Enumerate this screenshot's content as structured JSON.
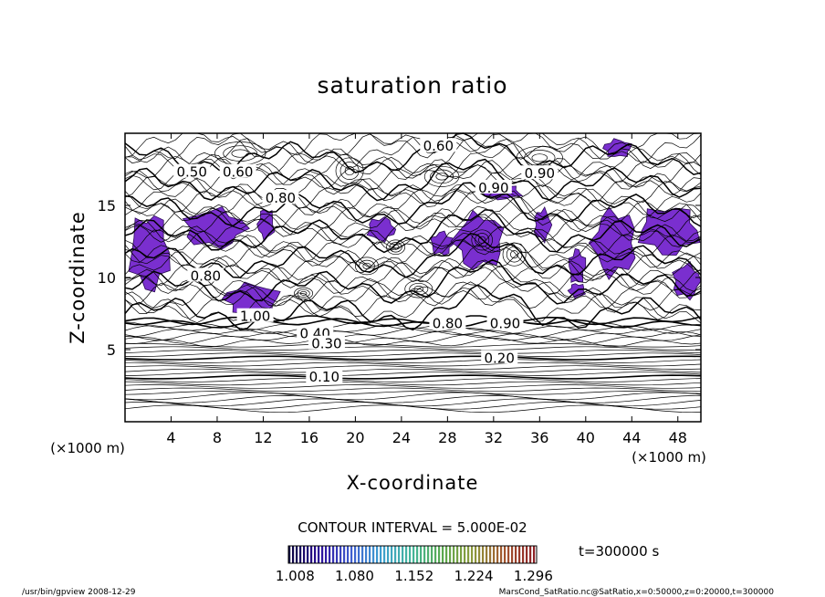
{
  "chart_data": {
    "type": "contour",
    "title": "saturation ratio",
    "xlabel": "X-coordinate",
    "ylabel": "Z-coordinate",
    "x_unit": "(×1000 m)",
    "x_unit_right": "(×1000 m)",
    "xlim": [
      0,
      50
    ],
    "ylim": [
      0,
      20
    ],
    "x_ticks": [
      4,
      8,
      12,
      16,
      20,
      24,
      28,
      32,
      36,
      40,
      44,
      48
    ],
    "y_ticks": [
      5,
      10,
      15
    ],
    "contour_interval_label": "CONTOUR INTERVAL = 5.000E-02",
    "time_label": "t=300000 s",
    "colorbar": {
      "ticks": [
        "1.008",
        "1.080",
        "1.152",
        "1.224",
        "1.296"
      ],
      "range": [
        1.0,
        1.3
      ],
      "colors": [
        "#0b0540",
        "#2c0f9a",
        "#3f5ccf",
        "#3d9fd0",
        "#44b59b",
        "#5aa94f",
        "#8c9a3c",
        "#a3572f",
        "#8e2226"
      ]
    },
    "contour_labels": [
      {
        "text": "0.50",
        "x": 5.8,
        "z": 17.3
      },
      {
        "text": "0.60",
        "x": 9.8,
        "z": 17.3
      },
      {
        "text": "0.60",
        "x": 27.2,
        "z": 19.1
      },
      {
        "text": "0.90",
        "x": 36.0,
        "z": 17.2
      },
      {
        "text": "0.90",
        "x": 32.0,
        "z": 16.2
      },
      {
        "text": "0.80",
        "x": 13.5,
        "z": 15.5
      },
      {
        "text": "0.80",
        "x": 7.0,
        "z": 10.1
      },
      {
        "text": "1.00",
        "x": 11.3,
        "z": 7.3
      },
      {
        "text": "0.80",
        "x": 28.0,
        "z": 6.8
      },
      {
        "text": "0.90",
        "x": 33.0,
        "z": 6.8
      },
      {
        "text": "0.40",
        "x": 16.5,
        "z": 6.1
      },
      {
        "text": "0.30",
        "x": 17.5,
        "z": 5.4
      },
      {
        "text": "0.20",
        "x": 32.5,
        "z": 4.4
      },
      {
        "text": "0.10",
        "x": 17.3,
        "z": 3.1
      }
    ],
    "supersaturated_regions": [
      {
        "x": [
          0.3,
          4.0
        ],
        "z": [
          9.0,
          14.5
        ]
      },
      {
        "x": [
          5.0,
          10.5
        ],
        "z": [
          12.0,
          14.8
        ]
      },
      {
        "x": [
          8.5,
          13.5
        ],
        "z": [
          7.4,
          9.6
        ]
      },
      {
        "x": [
          11.5,
          13.0
        ],
        "z": [
          12.6,
          14.8
        ]
      },
      {
        "x": [
          21.0,
          23.5
        ],
        "z": [
          12.5,
          14.2
        ]
      },
      {
        "x": [
          26.5,
          28.5
        ],
        "z": [
          11.5,
          13.2
        ]
      },
      {
        "x": [
          28.5,
          33.0
        ],
        "z": [
          10.5,
          14.5
        ]
      },
      {
        "x": [
          31.0,
          34.5
        ],
        "z": [
          15.4,
          16.4
        ]
      },
      {
        "x": [
          35.5,
          37.0
        ],
        "z": [
          12.5,
          14.8
        ]
      },
      {
        "x": [
          38.5,
          40.0
        ],
        "z": [
          9.5,
          12.0
        ]
      },
      {
        "x": [
          40.5,
          44.5
        ],
        "z": [
          10.0,
          14.8
        ]
      },
      {
        "x": [
          44.5,
          50.0
        ],
        "z": [
          11.5,
          15.0
        ]
      },
      {
        "x": [
          47.5,
          50.0
        ],
        "z": [
          8.5,
          11.0
        ]
      },
      {
        "x": [
          41.5,
          44.0
        ],
        "z": [
          18.3,
          19.6
        ]
      },
      {
        "x": [
          38.5,
          40.0
        ],
        "z": [
          8.6,
          9.6
        ]
      }
    ]
  },
  "footer": {
    "left": "/usr/bin/gpview  2008-12-29",
    "right": "MarsCond_SatRatio.nc@SatRatio,x=0:50000,z=0:20000,t=300000"
  }
}
